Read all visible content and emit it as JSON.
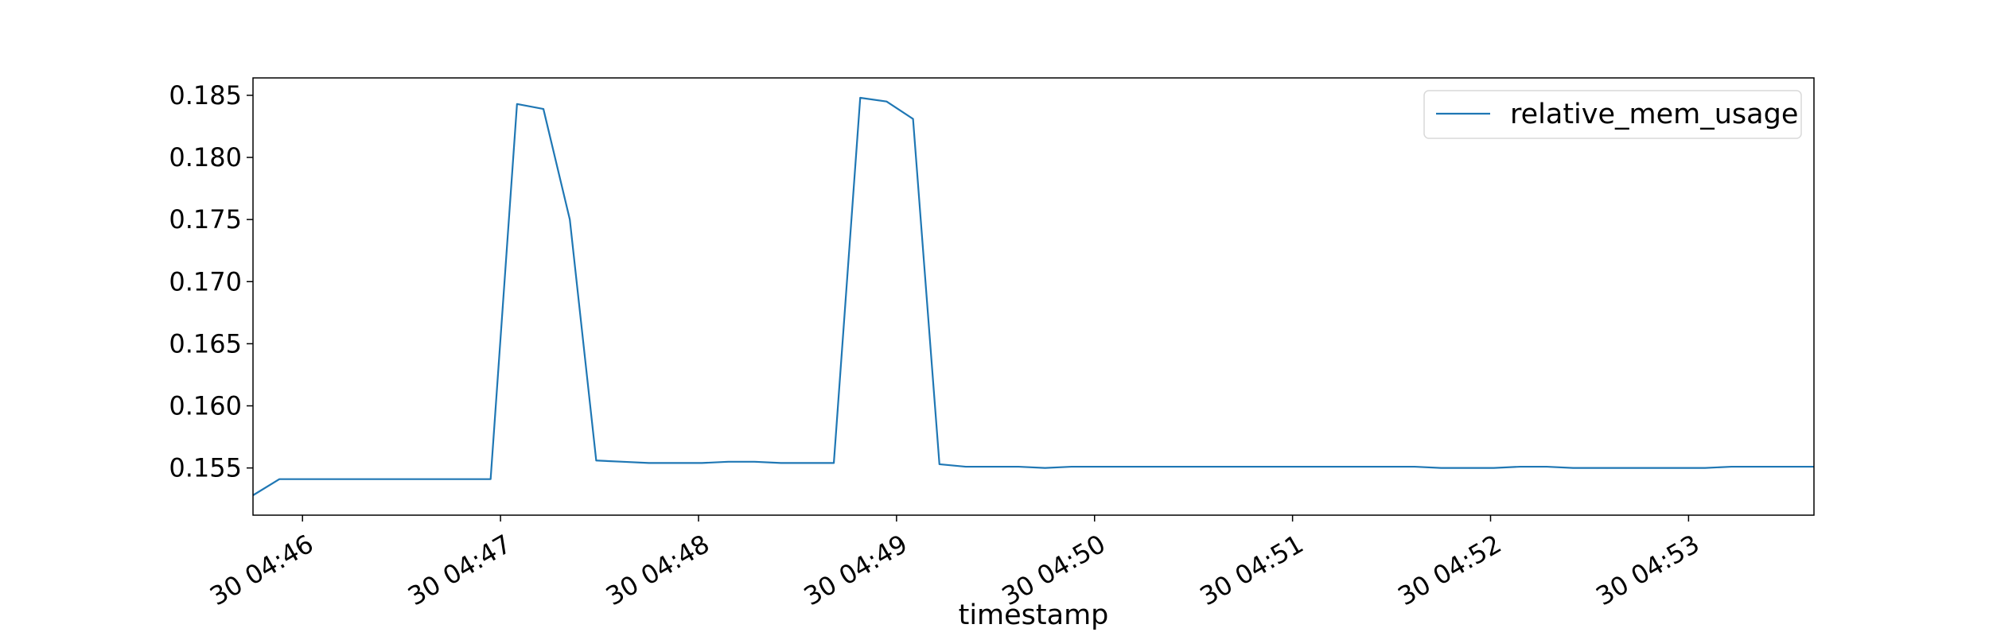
{
  "chart_data": {
    "type": "line",
    "title": "",
    "xlabel": "timestamp",
    "ylabel": "",
    "x_tick_labels": [
      "30 04:46",
      "30 04:47",
      "30 04:48",
      "30 04:49",
      "30 04:50",
      "30 04:51",
      "30 04:52",
      "30 04:53"
    ],
    "y_tick_labels": [
      "0.155",
      "0.160",
      "0.165",
      "0.170",
      "0.175",
      "0.180",
      "0.185"
    ],
    "x_range": [
      "30 04:45:45",
      "30 04:53:38"
    ],
    "ylim": [
      0.1512,
      0.1864
    ],
    "grid": false,
    "legend_position": "upper right",
    "series": [
      {
        "name": "relative_mem_usage",
        "color": "#1f77b4",
        "x": [
          "30 04:45:45",
          "30 04:45:53",
          "30 04:46:01",
          "30 04:46:09",
          "30 04:46:17",
          "30 04:46:25",
          "30 04:46:33",
          "30 04:46:41",
          "30 04:46:49",
          "30 04:46:57",
          "30 04:47:05",
          "30 04:47:13",
          "30 04:47:21",
          "30 04:47:29",
          "30 04:47:37",
          "30 04:47:45",
          "30 04:47:53",
          "30 04:48:01",
          "30 04:48:09",
          "30 04:48:17",
          "30 04:48:25",
          "30 04:48:33",
          "30 04:48:41",
          "30 04:48:49",
          "30 04:48:57",
          "30 04:49:05",
          "30 04:49:13",
          "30 04:49:21",
          "30 04:49:29",
          "30 04:49:37",
          "30 04:49:45",
          "30 04:49:53",
          "30 04:50:01",
          "30 04:50:09",
          "30 04:50:17",
          "30 04:50:25",
          "30 04:50:33",
          "30 04:50:41",
          "30 04:50:49",
          "30 04:50:57",
          "30 04:51:05",
          "30 04:51:13",
          "30 04:51:21",
          "30 04:51:29",
          "30 04:51:37",
          "30 04:51:45",
          "30 04:51:53",
          "30 04:52:01",
          "30 04:52:09",
          "30 04:52:17",
          "30 04:52:25",
          "30 04:52:33",
          "30 04:52:41",
          "30 04:52:49",
          "30 04:52:57",
          "30 04:53:05",
          "30 04:53:13",
          "30 04:53:21",
          "30 04:53:29",
          "30 04:53:38"
        ],
        "values": [
          0.1528,
          0.1541,
          0.1541,
          0.1541,
          0.1541,
          0.1541,
          0.1541,
          0.1541,
          0.1541,
          0.1541,
          0.1843,
          0.1839,
          0.175,
          0.1556,
          0.1555,
          0.1554,
          0.1554,
          0.1554,
          0.1555,
          0.1555,
          0.1554,
          0.1554,
          0.1554,
          0.1848,
          0.1845,
          0.1831,
          0.1553,
          0.1551,
          0.1551,
          0.1551,
          0.155,
          0.1551,
          0.1551,
          0.1551,
          0.1551,
          0.1551,
          0.1551,
          0.1551,
          0.1551,
          0.1551,
          0.1551,
          0.1551,
          0.1551,
          0.1551,
          0.1551,
          0.155,
          0.155,
          0.155,
          0.1551,
          0.1551,
          0.155,
          0.155,
          0.155,
          0.155,
          0.155,
          0.155,
          0.1551,
          0.1551,
          0.1551,
          0.1551
        ]
      }
    ]
  }
}
